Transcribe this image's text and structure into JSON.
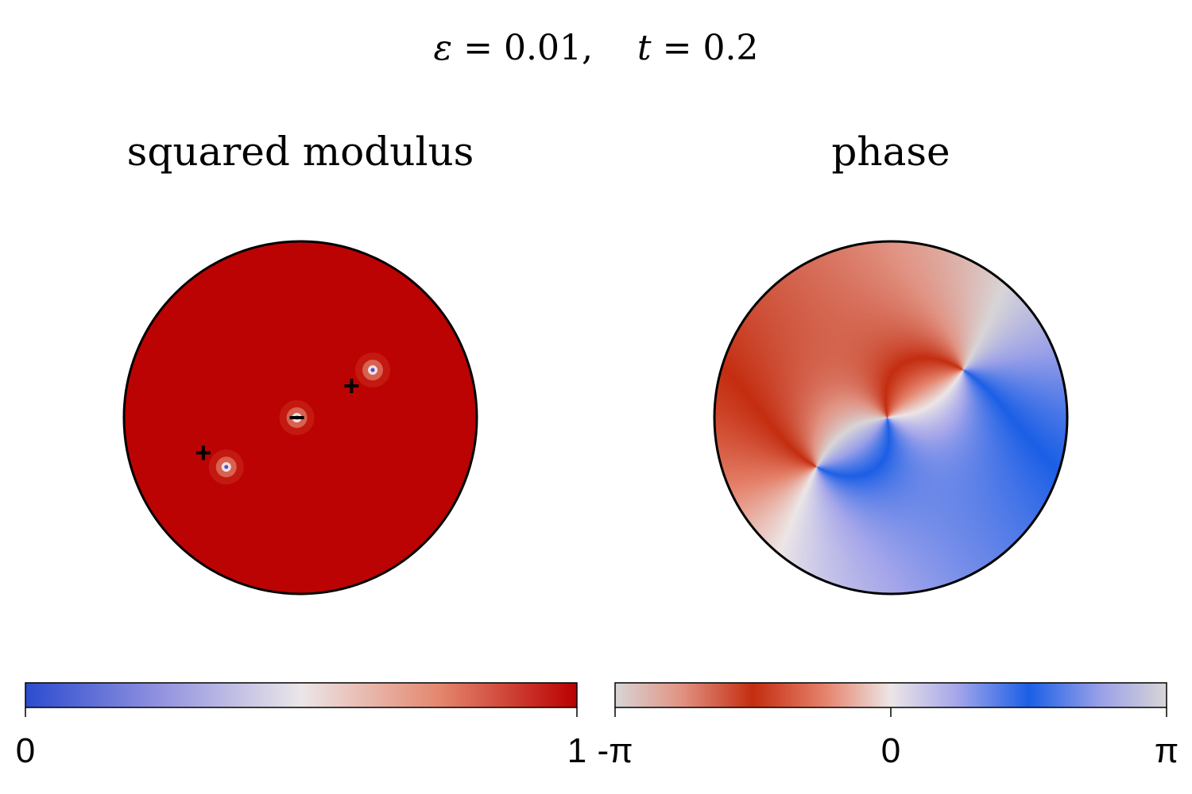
{
  "figure": {
    "title": {
      "parts": [
        {
          "text": "ε",
          "italic": true
        },
        {
          "text": " = 0.01,",
          "italic": false
        },
        {
          "text": "    ",
          "italic": false
        },
        {
          "text": "t",
          "italic": true
        },
        {
          "text": " = 0.2",
          "italic": false
        }
      ]
    }
  },
  "chart_data": [
    {
      "type": "heatmap",
      "title": "squared modulus",
      "domain": "unit disk",
      "colorscale": {
        "name": "diverging blue-white-red",
        "stops": [
          {
            "pos": 0.0,
            "color": "#2c4ccf"
          },
          {
            "pos": 0.25,
            "color": "#9494e0"
          },
          {
            "pos": 0.5,
            "color": "#ebe6e8"
          },
          {
            "pos": 0.75,
            "color": "#e4876e"
          },
          {
            "pos": 1.0,
            "color": "#ba0000"
          }
        ]
      },
      "range": [
        0,
        1
      ],
      "colorbar_ticks": [
        {
          "value": 0,
          "label": "0"
        },
        {
          "value": 1,
          "label": "1"
        }
      ],
      "background_value": 1,
      "background_color": "#bb0303",
      "vortices": [
        {
          "x": -0.42,
          "y": -0.28,
          "sign": "+",
          "charge": 1
        },
        {
          "x": -0.02,
          "y": 0.0,
          "sign": "−",
          "charge": -1
        },
        {
          "x": 0.41,
          "y": 0.27,
          "sign": "+",
          "charge": 1
        }
      ],
      "marker_offsets": [
        {
          "x": -0.13,
          "y": 0.08
        },
        {
          "x": 0.0,
          "y": 0.0
        },
        {
          "x": -0.12,
          "y": -0.09
        }
      ]
    },
    {
      "type": "heatmap",
      "title": "phase",
      "domain": "unit disk",
      "colorscale": {
        "name": "cyclic",
        "stops": [
          {
            "pos": 0.0,
            "color": "#d8d5d7"
          },
          {
            "pos": 0.12,
            "color": "#e19383"
          },
          {
            "pos": 0.25,
            "color": "#c42d10"
          },
          {
            "pos": 0.38,
            "color": "#e5826b"
          },
          {
            "pos": 0.5,
            "color": "#ece6e6"
          },
          {
            "pos": 0.62,
            "color": "#a5a6ea"
          },
          {
            "pos": 0.75,
            "color": "#1b5fe6"
          },
          {
            "pos": 0.88,
            "color": "#9aa0e8"
          },
          {
            "pos": 1.0,
            "color": "#d8d5d7"
          }
        ]
      },
      "range": [
        "-π",
        "π"
      ],
      "colorbar_ticks": [
        {
          "value": -3.14159,
          "label": "-π"
        },
        {
          "value": 0,
          "label": "0"
        },
        {
          "value": 3.14159,
          "label": "π"
        }
      ],
      "phase_offset": 2.1
    }
  ]
}
